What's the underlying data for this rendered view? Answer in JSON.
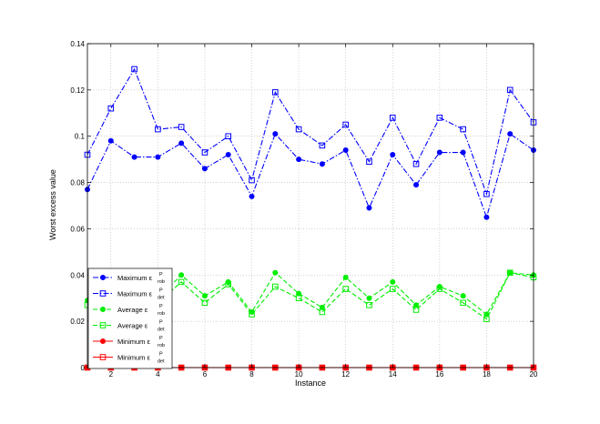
{
  "chart_data": {
    "type": "line",
    "xlabel": "Instance",
    "ylabel": "Worst excess value",
    "xlim": [
      1,
      20
    ],
    "ylim": [
      0,
      0.14
    ],
    "xticks": [
      2,
      4,
      6,
      8,
      10,
      12,
      14,
      16,
      18,
      20
    ],
    "yticks": [
      0,
      0.02,
      0.04,
      0.06,
      0.08,
      0.1,
      0.12,
      0.14
    ],
    "ytick_labels": [
      "0",
      "0.02",
      "0.04",
      "0.06",
      "0.08",
      "0.1",
      "0.12",
      "0.14"
    ],
    "grid": true,
    "legend_position": "lower-left",
    "x": [
      1,
      2,
      3,
      4,
      5,
      6,
      7,
      8,
      9,
      10,
      11,
      12,
      13,
      14,
      15,
      16,
      17,
      18,
      19,
      20
    ],
    "series": [
      {
        "name": "Maximum ε_rob^P",
        "label": "Maximum",
        "sub": "rob",
        "color": "#0000ff",
        "marker": "circle",
        "dash": "dashdot",
        "values": [
          0.077,
          0.098,
          0.091,
          0.091,
          0.097,
          0.086,
          0.092,
          0.074,
          0.101,
          0.09,
          0.088,
          0.094,
          0.069,
          0.092,
          0.079,
          0.093,
          0.093,
          0.065,
          0.101,
          0.094
        ]
      },
      {
        "name": "Maximum ε_det^P",
        "label": "Maximum",
        "sub": "det",
        "color": "#0000ff",
        "marker": "square",
        "dash": "dashdot",
        "values": [
          0.092,
          0.112,
          0.129,
          0.103,
          0.104,
          0.093,
          0.1,
          0.081,
          0.119,
          0.103,
          0.096,
          0.105,
          0.089,
          0.108,
          0.088,
          0.108,
          0.103,
          0.075,
          0.12,
          0.106
        ]
      },
      {
        "name": "Average ε_rob^P",
        "label": "Average",
        "sub": "rob",
        "color": "#00ee00",
        "marker": "circle",
        "dash": "dashed",
        "values": [
          0.029,
          0.033,
          0.031,
          0.03,
          0.04,
          0.031,
          0.037,
          0.024,
          0.041,
          0.032,
          0.026,
          0.039,
          0.03,
          0.037,
          0.027,
          0.035,
          0.031,
          0.023,
          0.041,
          0.04
        ]
      },
      {
        "name": "Average ε_det^P",
        "label": "Average",
        "sub": "det",
        "color": "#00ee00",
        "marker": "square",
        "dash": "dashed",
        "values": [
          0.027,
          0.031,
          0.029,
          0.028,
          0.037,
          0.028,
          0.036,
          0.023,
          0.035,
          0.03,
          0.024,
          0.034,
          0.027,
          0.034,
          0.025,
          0.034,
          0.028,
          0.021,
          0.041,
          0.039
        ]
      },
      {
        "name": "Minimum ε_rob^P",
        "label": "Minimum",
        "sub": "rob",
        "color": "#ff0000",
        "marker": "circle",
        "dash": "solid",
        "values": [
          0,
          0,
          0,
          0,
          0,
          0,
          0,
          0,
          0,
          0,
          0,
          0,
          0,
          0,
          0,
          0,
          0,
          0,
          0,
          0
        ]
      },
      {
        "name": "Minimum ε_det^P",
        "label": "Minimum",
        "sub": "det",
        "color": "#ff0000",
        "marker": "square",
        "dash": "solid",
        "values": [
          0,
          0,
          0,
          0,
          0,
          0,
          0,
          0,
          0,
          0,
          0,
          0,
          0,
          0,
          0,
          0,
          0,
          0,
          0,
          0
        ]
      }
    ],
    "legend_symbol": "ε",
    "legend_sup": "P"
  }
}
